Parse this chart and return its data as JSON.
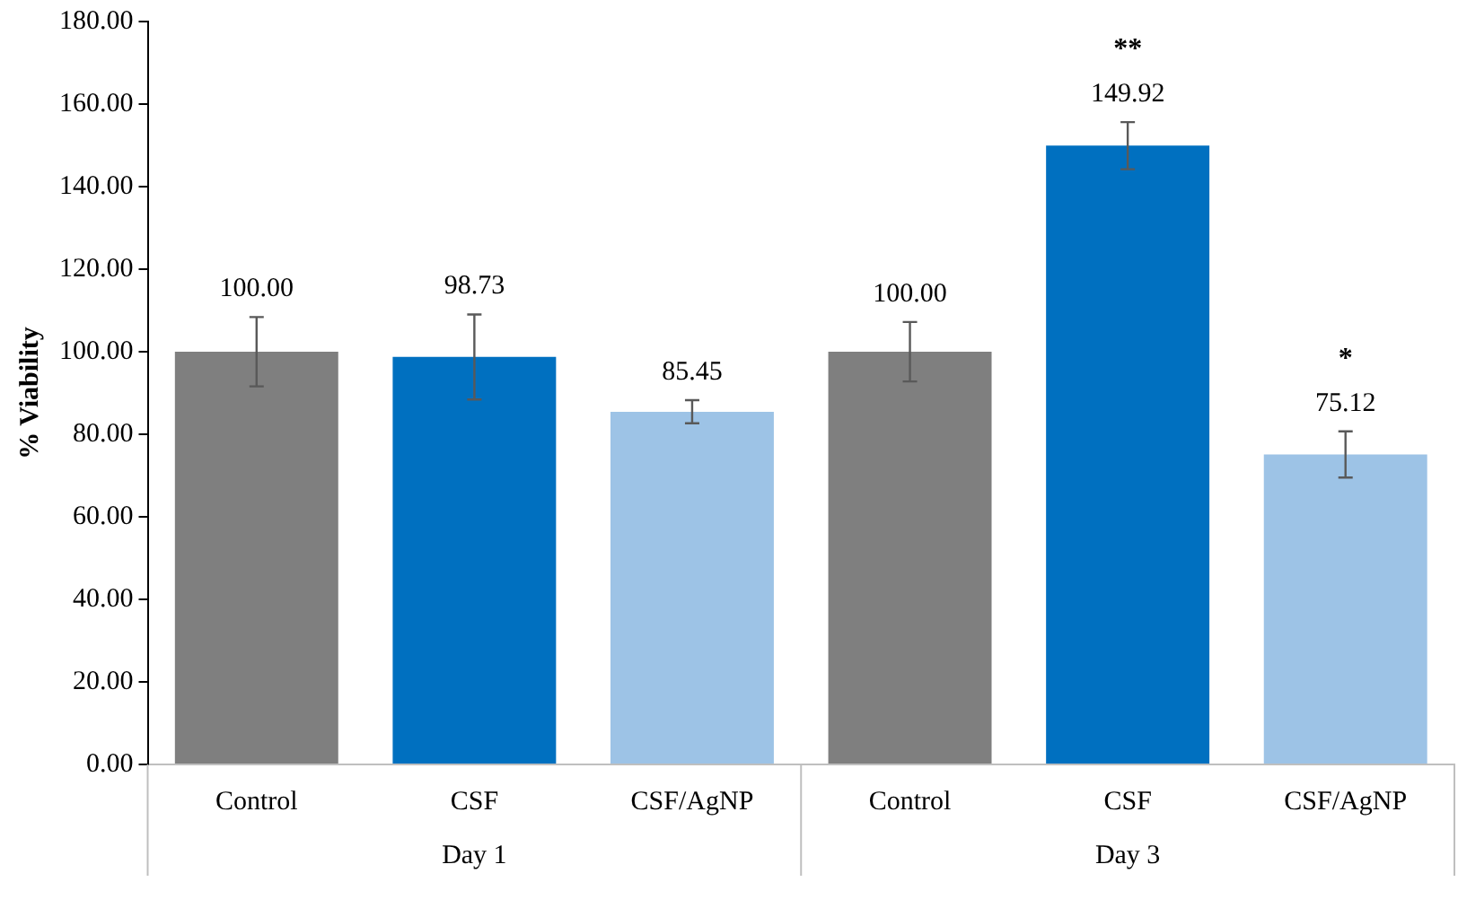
{
  "chart_data": {
    "type": "bar",
    "ylabel": "% Viability",
    "categories": [
      "Control",
      "CSF",
      "CSF/AgNP",
      "Control",
      "CSF",
      "CSF/AgNP"
    ],
    "values": [
      100.0,
      98.73,
      85.45,
      100.0,
      149.92,
      75.12
    ],
    "colors": [
      "#7f7f7f",
      "#0070c0",
      "#9dc3e6",
      "#7f7f7f",
      "#0070c0",
      "#9dc3e6"
    ],
    "errors": [
      8.4,
      10.3,
      2.8,
      7.2,
      5.7,
      5.6
    ],
    "value_labels": [
      "100.00",
      "98.73",
      "85.45",
      "100.00",
      "149.92",
      "75.12"
    ],
    "ylim": [
      0,
      180
    ],
    "yticks": [
      {
        "value": 0,
        "label": "0.00"
      },
      {
        "value": 20,
        "label": "20.00"
      },
      {
        "value": 40,
        "label": "40.00"
      },
      {
        "value": 60,
        "label": "60.00"
      },
      {
        "value": 80,
        "label": "80.00"
      },
      {
        "value": 100,
        "label": "100.00"
      },
      {
        "value": 120,
        "label": "120.00"
      },
      {
        "value": 140,
        "label": "140.00"
      },
      {
        "value": 160,
        "label": "160.00"
      },
      {
        "value": 180,
        "label": "180.00"
      }
    ],
    "annotations": [
      "**",
      "*",
      "Day 1",
      "Day 3"
    ],
    "grid": false,
    "legend": false
  }
}
